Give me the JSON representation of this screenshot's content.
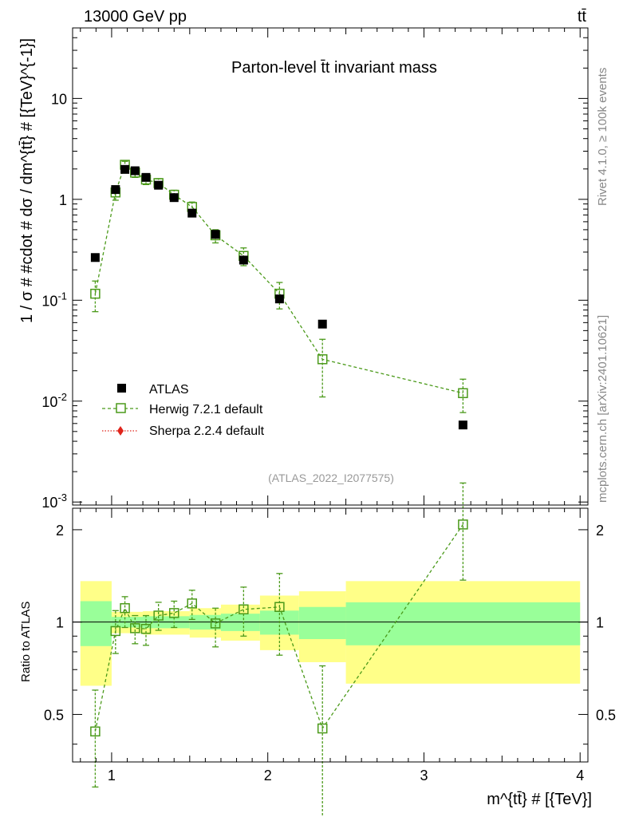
{
  "header": {
    "left": "13000 GeV pp",
    "right": "tt̄"
  },
  "side_text": {
    "upper": "Rivet 4.1.0, ≥ 100k events",
    "lower": "mcplots.cern.ch [arXiv:2401.10621]"
  },
  "chart_data": [
    {
      "type": "scatter",
      "title": "Parton-level t̄t invariant mass",
      "analysis_label": "(ATLAS_2022_I2077575)",
      "xlabel": "m^{tt̄} # [{TeV}]",
      "ylabel": "1 / σ # #cdot # dσ / dm^{tt̄} # [{TeV}^{-1}]",
      "xlim": [
        0.75,
        4.05
      ],
      "ylim": [
        0.001,
        50
      ],
      "yscale": "log",
      "ytick_labels": [
        "10^{-3}",
        "10^{-2}",
        "10^{-1}",
        "1",
        "10"
      ],
      "xtick_labels": [
        "1",
        "2",
        "3",
        "4"
      ],
      "legend_position": "lower-left",
      "series": [
        {
          "name": "ATLAS",
          "marker": "filled-square",
          "color": "#000000",
          "points": [
            {
              "x": 0.895,
              "y": 0.265
            },
            {
              "x": 1.025,
              "y": 1.25
            },
            {
              "x": 1.085,
              "y": 1.98
            },
            {
              "x": 1.15,
              "y": 1.92
            },
            {
              "x": 1.22,
              "y": 1.65
            },
            {
              "x": 1.3,
              "y": 1.38
            },
            {
              "x": 1.4,
              "y": 1.04
            },
            {
              "x": 1.515,
              "y": 0.73
            },
            {
              "x": 1.665,
              "y": 0.45
            },
            {
              "x": 1.845,
              "y": 0.25
            },
            {
              "x": 2.075,
              "y": 0.103
            },
            {
              "x": 2.35,
              "y": 0.058
            },
            {
              "x": 3.25,
              "y": 0.0058
            }
          ]
        },
        {
          "name": "Herwig 7.2.1 default",
          "marker": "open-square",
          "line": "dashed",
          "color": "#4b9a1a",
          "points": [
            {
              "x": 0.895,
              "y": 0.116,
              "ylo": 0.077,
              "yhi": 0.155
            },
            {
              "x": 1.025,
              "y": 1.17,
              "ylo": 0.98,
              "yhi": 1.36
            },
            {
              "x": 1.085,
              "y": 2.2,
              "ylo": 2.05,
              "yhi": 2.38
            },
            {
              "x": 1.15,
              "y": 1.84,
              "ylo": 1.65,
              "yhi": 2.02
            },
            {
              "x": 1.22,
              "y": 1.57,
              "ylo": 1.4,
              "yhi": 1.74
            },
            {
              "x": 1.3,
              "y": 1.45,
              "ylo": 1.3,
              "yhi": 1.6
            },
            {
              "x": 1.4,
              "y": 1.11,
              "ylo": 1.0,
              "yhi": 1.23
            },
            {
              "x": 1.515,
              "y": 0.84,
              "ylo": 0.75,
              "yhi": 0.94
            },
            {
              "x": 1.665,
              "y": 0.44,
              "ylo": 0.37,
              "yhi": 0.5
            },
            {
              "x": 1.845,
              "y": 0.275,
              "ylo": 0.22,
              "yhi": 0.33
            },
            {
              "x": 2.075,
              "y": 0.116,
              "ylo": 0.082,
              "yhi": 0.15
            },
            {
              "x": 2.35,
              "y": 0.026,
              "ylo": 0.011,
              "yhi": 0.041
            },
            {
              "x": 3.25,
              "y": 0.012,
              "ylo": 0.0077,
              "yhi": 0.0165
            }
          ]
        },
        {
          "name": "Sherpa 2.2.4 default",
          "marker": "filled-diamond",
          "line": "dotted",
          "color": "#e0241b",
          "points": []
        }
      ]
    },
    {
      "type": "scatter",
      "ylabel": "Ratio to ATLAS",
      "xlim": [
        0.75,
        4.05
      ],
      "ylim": [
        0.35,
        2.35
      ],
      "ytick_labels": [
        "0.5",
        "1",
        "2"
      ],
      "reference_line": 1,
      "band_colors": {
        "inner": "#99ff99",
        "outer": "#ffff88"
      },
      "bands": [
        {
          "xlo": 0.8,
          "xhi": 1.0,
          "inner": [
            0.835,
            1.17
          ],
          "outer": [
            0.62,
            1.36
          ]
        },
        {
          "xlo": 1.0,
          "xhi": 1.2,
          "inner": [
            0.96,
            1.04
          ],
          "outer": [
            0.92,
            1.08
          ]
        },
        {
          "xlo": 1.2,
          "xhi": 1.5,
          "inner": [
            0.955,
            1.045
          ],
          "outer": [
            0.91,
            1.085
          ]
        },
        {
          "xlo": 1.5,
          "xhi": 1.7,
          "inner": [
            0.945,
            1.055
          ],
          "outer": [
            0.89,
            1.11
          ]
        },
        {
          "xlo": 1.7,
          "xhi": 1.95,
          "inner": [
            0.935,
            1.065
          ],
          "outer": [
            0.87,
            1.14
          ]
        },
        {
          "xlo": 1.95,
          "xhi": 2.2,
          "inner": [
            0.91,
            1.09
          ],
          "outer": [
            0.81,
            1.22
          ]
        },
        {
          "xlo": 2.2,
          "xhi": 2.5,
          "inner": [
            0.88,
            1.12
          ],
          "outer": [
            0.74,
            1.26
          ]
        },
        {
          "xlo": 2.5,
          "xhi": 4.0,
          "inner": [
            0.84,
            1.16
          ],
          "outer": [
            0.63,
            1.36
          ]
        }
      ],
      "series": [
        {
          "name": "Herwig 7.2.1 default",
          "marker": "open-square",
          "line": "dashed",
          "color": "#4b9a1a",
          "points": [
            {
              "x": 0.895,
              "y": 0.44,
              "ylo": 0.29,
              "yhi": 0.6
            },
            {
              "x": 1.025,
              "y": 0.935,
              "ylo": 0.79,
              "yhi": 1.09
            },
            {
              "x": 1.085,
              "y": 1.11,
              "ylo": 0.96,
              "yhi": 1.21
            },
            {
              "x": 1.15,
              "y": 0.955,
              "ylo": 0.85,
              "yhi": 1.05
            },
            {
              "x": 1.22,
              "y": 0.95,
              "ylo": 0.84,
              "yhi": 1.05
            },
            {
              "x": 1.3,
              "y": 1.05,
              "ylo": 0.94,
              "yhi": 1.16
            },
            {
              "x": 1.4,
              "y": 1.07,
              "ylo": 0.96,
              "yhi": 1.17
            },
            {
              "x": 1.515,
              "y": 1.15,
              "ylo": 1.02,
              "yhi": 1.27
            },
            {
              "x": 1.665,
              "y": 0.99,
              "ylo": 0.83,
              "yhi": 1.11
            },
            {
              "x": 1.845,
              "y": 1.1,
              "ylo": 0.9,
              "yhi": 1.3
            },
            {
              "x": 2.075,
              "y": 1.12,
              "ylo": 0.78,
              "yhi": 1.44
            },
            {
              "x": 2.35,
              "y": 0.45,
              "ylo": 0.19,
              "yhi": 0.72
            },
            {
              "x": 3.25,
              "y": 2.08,
              "ylo": 1.37,
              "yhi": 2.84
            }
          ]
        }
      ]
    }
  ]
}
